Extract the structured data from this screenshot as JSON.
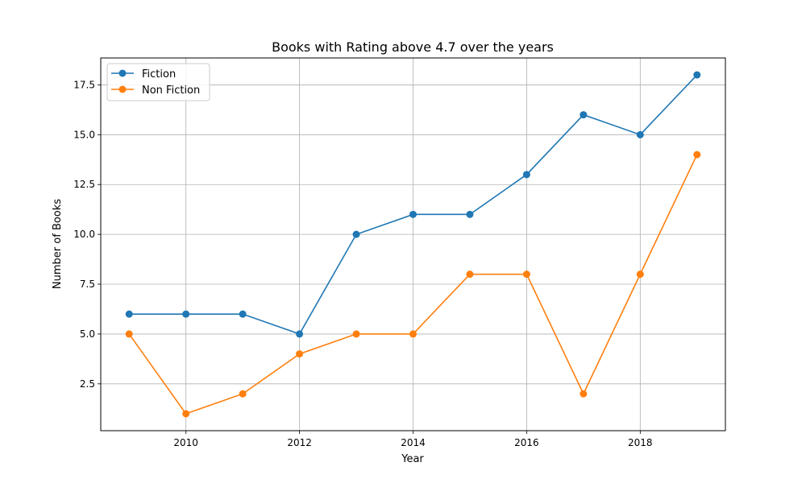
{
  "chart_data": {
    "type": "line",
    "title": "Books with Rating above 4.7 over the years",
    "xlabel": "Year",
    "ylabel": "Number of Books",
    "x": [
      2009,
      2010,
      2011,
      2012,
      2013,
      2014,
      2015,
      2016,
      2017,
      2018,
      2019
    ],
    "xlim": [
      2008.5,
      2019.5
    ],
    "ylim": [
      0.15,
      18.85
    ],
    "xticks": [
      2010,
      2012,
      2014,
      2016,
      2018
    ],
    "yticks": [
      2.5,
      5.0,
      7.5,
      10.0,
      12.5,
      15.0,
      17.5
    ],
    "xtick_labels": [
      "2010",
      "2012",
      "2014",
      "2016",
      "2018"
    ],
    "ytick_labels": [
      "2.5",
      "5.0",
      "7.5",
      "10.0",
      "12.5",
      "15.0",
      "17.5"
    ],
    "grid": true,
    "legend_position": "top-left",
    "series": [
      {
        "name": "Fiction",
        "color": "#1f77b4",
        "values": [
          6,
          6,
          6,
          5,
          10,
          11,
          11,
          13,
          16,
          15,
          18
        ]
      },
      {
        "name": "Non Fiction",
        "color": "#ff7f0e",
        "values": [
          5,
          1,
          2,
          4,
          5,
          5,
          8,
          8,
          2,
          8,
          14
        ]
      }
    ]
  }
}
